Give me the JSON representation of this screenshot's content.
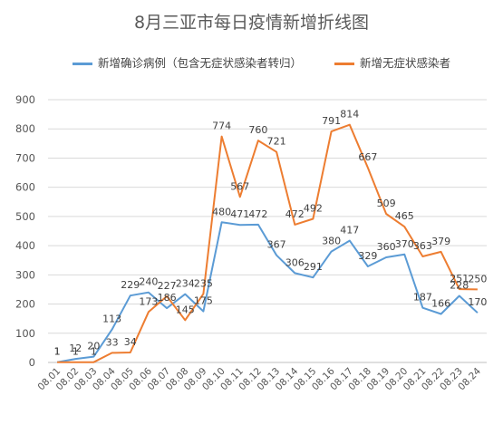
{
  "chart_data": {
    "type": "line",
    "title": "8月三亚市每日疫情新增折线图",
    "xlabel": "",
    "ylabel": "",
    "ylim": [
      0,
      900
    ],
    "yticks": [
      0,
      100,
      200,
      300,
      400,
      500,
      600,
      700,
      800,
      900
    ],
    "grid": true,
    "legend_position": "top",
    "categories": [
      "08.01",
      "08.02",
      "08.03",
      "08.04",
      "08.05",
      "08.06",
      "08.07",
      "08.08",
      "08.09",
      "08.10",
      "08.11",
      "08.12",
      "08.13",
      "08.14",
      "08.15",
      "08.16",
      "08.17",
      "08.18",
      "08.19",
      "08.20",
      "08.21",
      "08.22",
      "08.23",
      "08.24"
    ],
    "series": [
      {
        "name": "新增确诊病例（包含无症状感染者转归）",
        "color": "#5b9bd5",
        "values": [
          1,
          12,
          20,
          113,
          229,
          240,
          186,
          234,
          175,
          480,
          471,
          472,
          367,
          306,
          291,
          380,
          417,
          329,
          360,
          370,
          187,
          166,
          228,
          170
        ]
      },
      {
        "name": "新增无症状感染者",
        "color": "#ed7d31",
        "values": [
          1,
          1,
          1,
          33,
          34,
          173,
          227,
          145,
          235,
          774,
          567,
          760,
          721,
          472,
          492,
          791,
          814,
          667,
          509,
          465,
          363,
          379,
          251,
          250
        ]
      }
    ]
  }
}
